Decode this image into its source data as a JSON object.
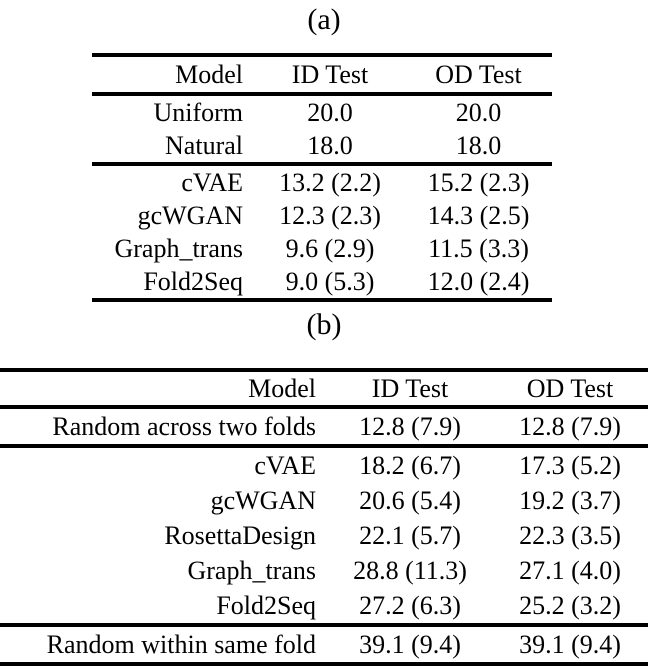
{
  "page": {
    "background": "#ffffff",
    "text_color": "#000000",
    "rule_color": "#000000"
  },
  "table_a": {
    "caption": "(a)",
    "columns": [
      "Model",
      "ID Test",
      "OD Test"
    ],
    "sections": [
      {
        "rows": [
          {
            "model": "Uniform",
            "id_test": "20.0",
            "id_bold": false,
            "od_test": "20.0",
            "od_bold": false
          },
          {
            "model": "Natural",
            "id_test": "18.0",
            "id_bold": false,
            "od_test": "18.0",
            "od_bold": false
          }
        ]
      },
      {
        "rows": [
          {
            "model": "cVAE",
            "id_test": "13.2 (2.2)",
            "id_bold": false,
            "od_test": "15.2 (2.3)",
            "od_bold": false
          },
          {
            "model": "gcWGAN",
            "id_test": "12.3 (2.3)",
            "id_bold": false,
            "od_test": "14.3 (2.5)",
            "od_bold": false
          },
          {
            "model": "Graph_trans",
            "id_test": "9.6 (2.9)",
            "id_bold": false,
            "od_test": "11.5 (3.3)",
            "od_bold": true
          },
          {
            "model": "Fold2Seq",
            "id_test": "9.0 (5.3)",
            "id_bold": true,
            "od_test": "12.0 (2.4)",
            "od_bold": false
          }
        ]
      }
    ]
  },
  "table_b": {
    "caption": "(b)",
    "columns": [
      "Model",
      "ID Test",
      "OD Test"
    ],
    "sections": [
      {
        "rows": [
          {
            "model": "Random across two folds",
            "id_test": "12.8 (7.9)",
            "id_bold": false,
            "od_test": "12.8 (7.9)",
            "od_bold": false
          }
        ]
      },
      {
        "rows": [
          {
            "model": "cVAE",
            "id_test": "18.2 (6.7)",
            "id_bold": false,
            "od_test": "17.3 (5.2)",
            "od_bold": false
          },
          {
            "model": "gcWGAN",
            "id_test": "20.6 (5.4)",
            "id_bold": false,
            "od_test": "19.2 (3.7)",
            "od_bold": false
          },
          {
            "model": "RosettaDesign",
            "id_test": "22.1 (5.7)",
            "id_bold": false,
            "od_test": "22.3 (3.5)",
            "od_bold": false
          },
          {
            "model": "Graph_trans",
            "id_test": "28.8 (11.3)",
            "id_bold": true,
            "od_test": "27.1 (4.0)",
            "od_bold": true
          },
          {
            "model": "Fold2Seq",
            "id_test": "27.2 (6.3)",
            "id_bold": false,
            "od_test": "25.2 (3.2)",
            "od_bold": false
          }
        ]
      },
      {
        "rows": [
          {
            "model": "Random within same fold",
            "id_test": "39.1 (9.4)",
            "id_bold": false,
            "od_test": "39.1 (9.4)",
            "od_bold": false
          }
        ]
      }
    ]
  }
}
